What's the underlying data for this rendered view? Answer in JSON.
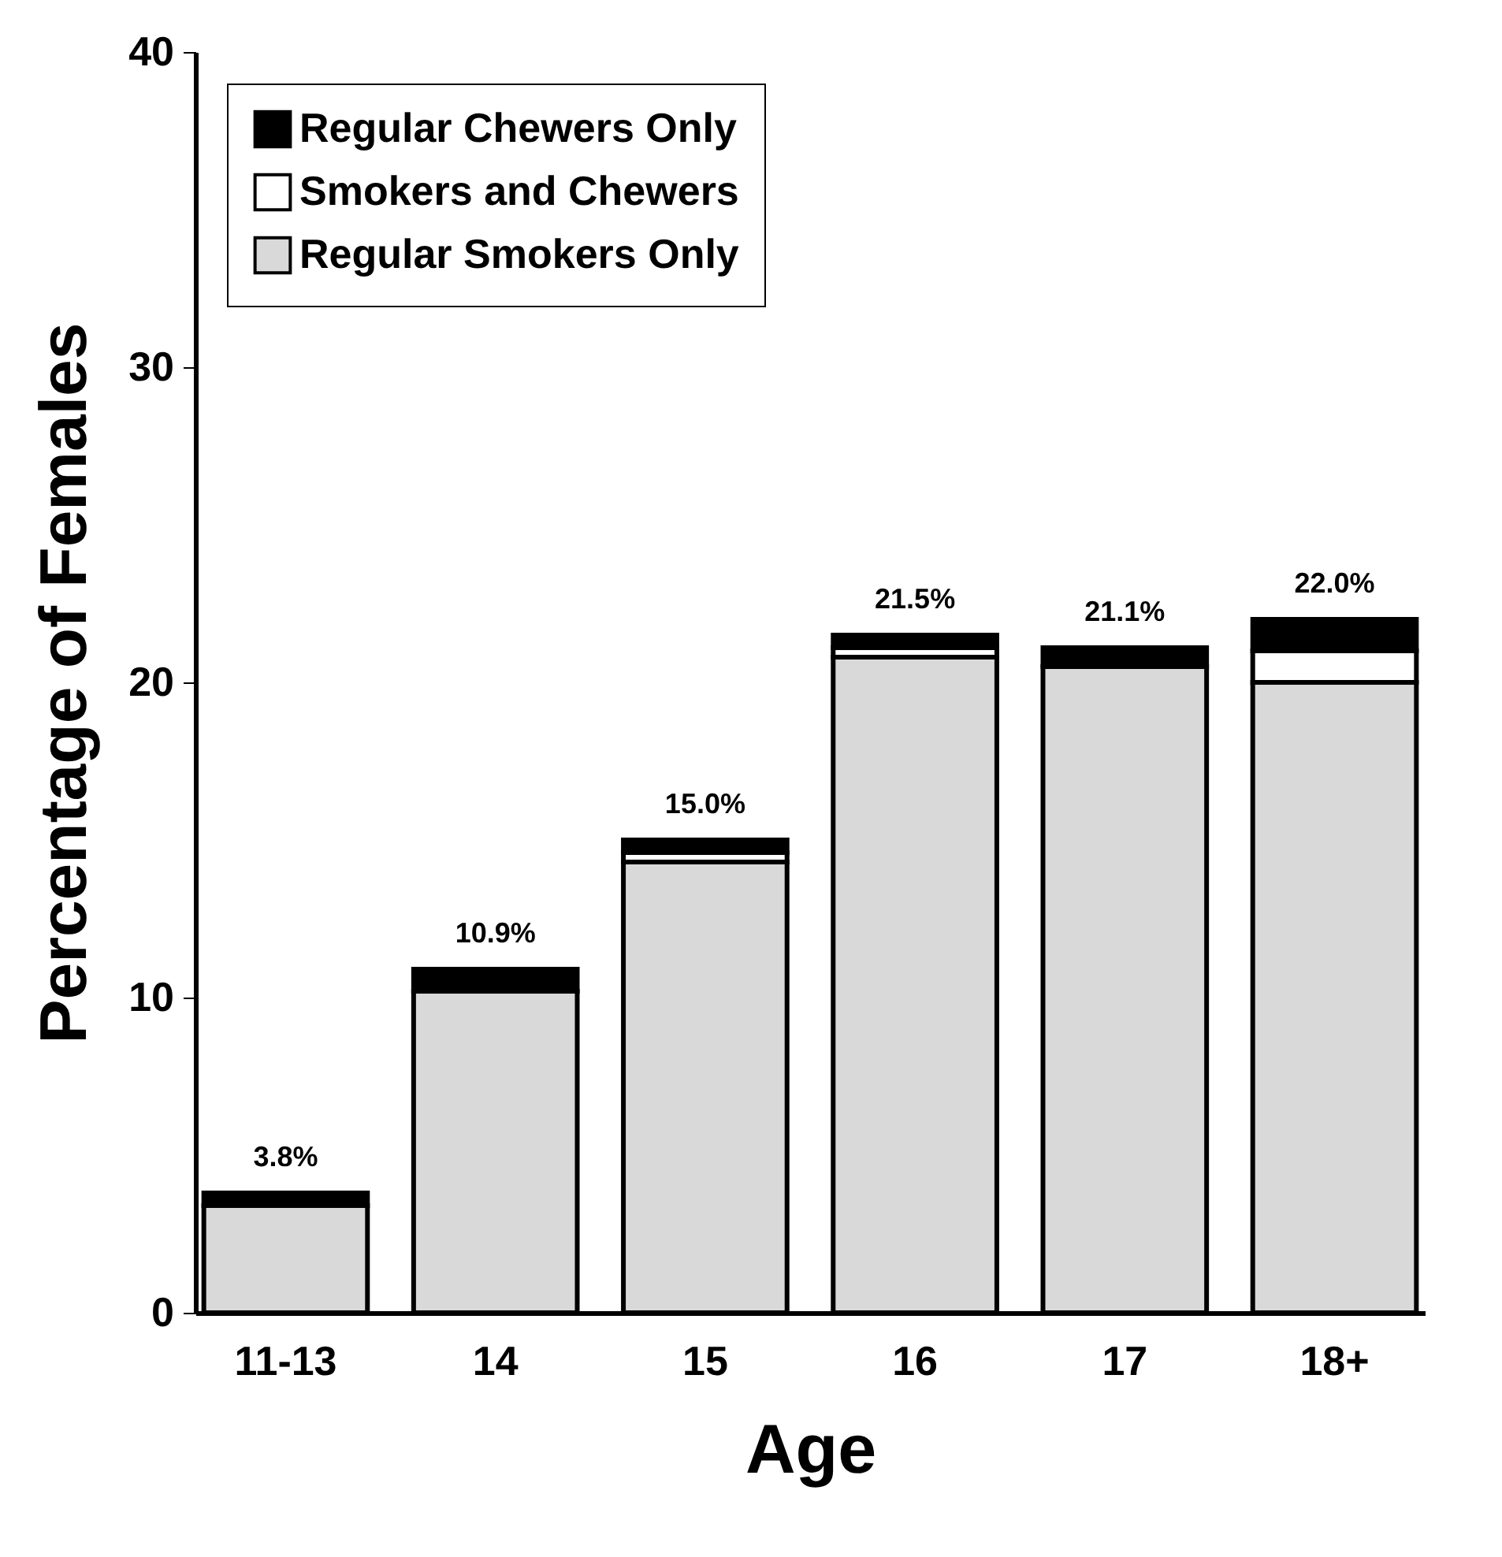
{
  "chart_data": {
    "type": "bar",
    "stacked": true,
    "xlabel": "Age",
    "ylabel": "Percentage of Females",
    "categories": [
      "11-13",
      "14",
      "15",
      "16",
      "17",
      "18+"
    ],
    "series": [
      {
        "name": "Regular Smokers Only",
        "color": "#d9d9d9",
        "values": [
          3.4,
          10.2,
          14.3,
          20.8,
          20.5,
          20.0
        ]
      },
      {
        "name": "Smokers and Chewers",
        "color": "#ffffff",
        "values": [
          null,
          null,
          0.3,
          0.3,
          null,
          1.0
        ]
      },
      {
        "name": "Regular Chewers Only",
        "color": "#000000",
        "values": [
          0.4,
          0.7,
          0.4,
          0.4,
          0.6,
          1.0
        ]
      }
    ],
    "totals": [
      "3.8%",
      "10.9%",
      "15.0%",
      "21.5%",
      "21.1%",
      "22.0%"
    ],
    "ylim": [
      0,
      40
    ],
    "yticks": [
      0,
      10,
      20,
      30,
      40
    ],
    "grid": false,
    "legend": "top left"
  }
}
